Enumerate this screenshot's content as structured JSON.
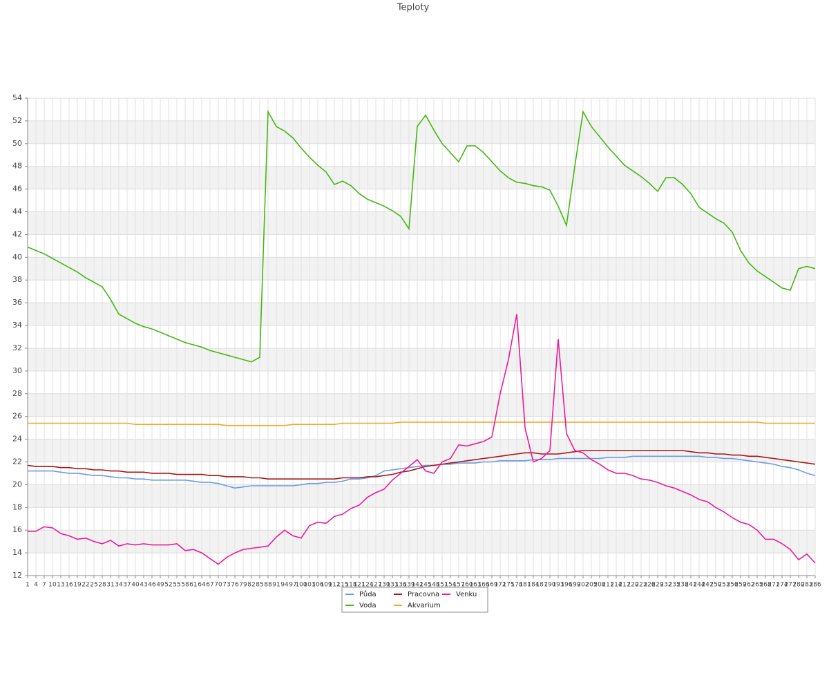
{
  "chart_data": {
    "type": "line",
    "title": "Teploty",
    "categories": [
      1,
      4,
      7,
      10,
      13,
      16,
      19,
      22,
      25,
      28,
      31,
      34,
      37,
      40,
      43,
      46,
      49,
      52,
      55,
      58,
      61,
      64,
      67,
      70,
      73,
      76,
      79,
      82,
      85,
      88,
      91,
      94,
      97,
      100,
      103,
      106,
      109,
      112,
      115,
      118,
      121,
      124,
      127,
      130,
      133,
      136,
      139,
      142,
      145,
      148,
      151,
      154,
      157,
      160,
      163,
      166,
      169,
      172,
      175,
      178,
      181,
      184,
      187,
      190,
      193,
      196,
      199,
      202,
      205,
      208,
      211,
      214,
      217,
      220,
      223,
      226,
      229,
      232,
      235,
      238,
      241,
      244,
      247,
      250,
      253,
      256,
      259,
      262,
      265,
      268,
      271,
      274,
      277,
      280,
      283,
      286
    ],
    "series": [
      {
        "name": "Půda",
        "color": "#6a9be8",
        "values": [
          21.2,
          21.2,
          21.2,
          21.2,
          21.1,
          21.0,
          21.0,
          20.9,
          20.8,
          20.8,
          20.7,
          20.6,
          20.6,
          20.5,
          20.5,
          20.4,
          20.4,
          20.4,
          20.4,
          20.4,
          20.3,
          20.2,
          20.2,
          20.1,
          19.9,
          19.7,
          19.8,
          19.9,
          19.9,
          19.9,
          19.9,
          19.9,
          19.9,
          20.0,
          20.1,
          20.1,
          20.2,
          20.2,
          20.3,
          20.5,
          20.5,
          20.6,
          20.8,
          21.2,
          21.3,
          21.4,
          21.5,
          21.6,
          21.7,
          21.7,
          21.8,
          21.8,
          21.9,
          21.9,
          21.9,
          22.0,
          22.0,
          22.1,
          22.1,
          22.1,
          22.1,
          22.2,
          22.2,
          22.2,
          22.3,
          22.3,
          22.3,
          22.3,
          22.3,
          22.3,
          22.4,
          22.4,
          22.4,
          22.5,
          22.5,
          22.5,
          22.5,
          22.5,
          22.5,
          22.5,
          22.5,
          22.5,
          22.4,
          22.4,
          22.3,
          22.3,
          22.2,
          22.1,
          22.0,
          21.9,
          21.8,
          21.6,
          21.5,
          21.3,
          21.0,
          20.8
        ]
      },
      {
        "name": "Voda",
        "color": "#44b811",
        "values": [
          40.9,
          40.6,
          40.3,
          39.9,
          39.5,
          39.1,
          38.7,
          38.2,
          37.8,
          37.4,
          36.3,
          35.0,
          34.6,
          34.2,
          33.9,
          33.7,
          33.4,
          33.1,
          32.8,
          32.5,
          32.3,
          32.1,
          31.8,
          31.6,
          31.4,
          31.2,
          31.0,
          30.8,
          31.2,
          52.8,
          51.5,
          51.1,
          50.5,
          49.6,
          48.8,
          48.1,
          47.5,
          46.4,
          46.7,
          46.3,
          45.6,
          45.1,
          44.8,
          44.5,
          44.1,
          43.6,
          42.5,
          51.5,
          52.5,
          51.2,
          50.0,
          49.2,
          48.4,
          49.8,
          49.8,
          49.2,
          48.4,
          47.6,
          47.0,
          46.6,
          46.5,
          46.3,
          46.2,
          45.9,
          44.5,
          42.8,
          48.0,
          52.8,
          51.5,
          50.6,
          49.7,
          48.9,
          48.1,
          47.6,
          47.1,
          46.5,
          45.8,
          47.0,
          47.0,
          46.4,
          45.6,
          44.4,
          43.9,
          43.4,
          43.0,
          42.2,
          40.6,
          39.5,
          38.8,
          38.3,
          37.8,
          37.3,
          37.1,
          39.0,
          39.2,
          39.0
        ]
      },
      {
        "name": "Pracovna",
        "color": "#aa1515",
        "values": [
          21.7,
          21.6,
          21.6,
          21.6,
          21.5,
          21.5,
          21.4,
          21.4,
          21.3,
          21.3,
          21.2,
          21.2,
          21.1,
          21.1,
          21.1,
          21.0,
          21.0,
          21.0,
          20.9,
          20.9,
          20.9,
          20.9,
          20.8,
          20.8,
          20.7,
          20.7,
          20.7,
          20.6,
          20.6,
          20.5,
          20.5,
          20.5,
          20.5,
          20.5,
          20.5,
          20.5,
          20.5,
          20.5,
          20.6,
          20.6,
          20.6,
          20.7,
          20.7,
          20.8,
          20.9,
          21.1,
          21.2,
          21.4,
          21.6,
          21.7,
          21.8,
          21.9,
          22.0,
          22.1,
          22.2,
          22.3,
          22.4,
          22.5,
          22.6,
          22.7,
          22.8,
          22.8,
          22.7,
          22.7,
          22.7,
          22.8,
          22.9,
          23.0,
          23.0,
          23.0,
          23.0,
          23.0,
          23.0,
          23.0,
          23.0,
          23.0,
          23.0,
          23.0,
          23.0,
          23.0,
          22.9,
          22.8,
          22.8,
          22.7,
          22.7,
          22.6,
          22.6,
          22.5,
          22.5,
          22.4,
          22.3,
          22.2,
          22.1,
          22.0,
          21.9,
          21.8
        ]
      },
      {
        "name": "Akvarium",
        "color": "#f5a623",
        "values": [
          25.4,
          25.4,
          25.4,
          25.4,
          25.4,
          25.4,
          25.4,
          25.4,
          25.4,
          25.4,
          25.4,
          25.4,
          25.4,
          25.3,
          25.3,
          25.3,
          25.3,
          25.3,
          25.3,
          25.3,
          25.3,
          25.3,
          25.3,
          25.3,
          25.2,
          25.2,
          25.2,
          25.2,
          25.2,
          25.2,
          25.2,
          25.2,
          25.3,
          25.3,
          25.3,
          25.3,
          25.3,
          25.3,
          25.4,
          25.4,
          25.4,
          25.4,
          25.4,
          25.4,
          25.4,
          25.5,
          25.5,
          25.5,
          25.5,
          25.5,
          25.5,
          25.5,
          25.5,
          25.5,
          25.5,
          25.5,
          25.5,
          25.5,
          25.5,
          25.5,
          25.5,
          25.5,
          25.5,
          25.5,
          25.5,
          25.5,
          25.5,
          25.5,
          25.5,
          25.5,
          25.5,
          25.5,
          25.5,
          25.5,
          25.5,
          25.5,
          25.5,
          25.5,
          25.5,
          25.5,
          25.5,
          25.5,
          25.5,
          25.5,
          25.5,
          25.5,
          25.5,
          25.5,
          25.5,
          25.4,
          25.4,
          25.4,
          25.4,
          25.4,
          25.4,
          25.4
        ]
      },
      {
        "name": "Venku",
        "color": "#ee1a99",
        "values": [
          15.9,
          15.9,
          16.3,
          16.2,
          15.7,
          15.5,
          15.2,
          15.3,
          15.0,
          14.8,
          15.1,
          14.6,
          14.8,
          14.7,
          14.8,
          14.7,
          14.7,
          14.7,
          14.8,
          14.2,
          14.3,
          14.0,
          13.5,
          13.0,
          13.6,
          14.0,
          14.3,
          14.4,
          14.5,
          14.6,
          15.4,
          16.0,
          15.5,
          15.3,
          16.4,
          16.7,
          16.6,
          17.2,
          17.4,
          17.9,
          18.2,
          18.9,
          19.3,
          19.6,
          20.4,
          21.0,
          21.6,
          22.2,
          21.2,
          21.0,
          22.0,
          22.3,
          23.5,
          23.4,
          23.6,
          23.8,
          24.2,
          28.0,
          31.0,
          35.0,
          25.0,
          22.0,
          22.3,
          23.0,
          32.8,
          24.5,
          23.0,
          22.8,
          22.2,
          21.8,
          21.3,
          21.0,
          21.0,
          20.8,
          20.5,
          20.4,
          20.2,
          19.9,
          19.7,
          19.4,
          19.1,
          18.7,
          18.5,
          18.0,
          17.6,
          17.1,
          16.7,
          16.5,
          16.0,
          15.2,
          15.2,
          14.8,
          14.3,
          13.4,
          13.9,
          13.1
        ]
      }
    ],
    "ylim": [
      12,
      54
    ],
    "yticks": [
      12,
      14,
      16,
      18,
      20,
      22,
      24,
      26,
      28,
      30,
      32,
      34,
      36,
      38,
      40,
      42,
      44,
      46,
      48,
      50,
      52,
      54
    ],
    "grid": true
  }
}
